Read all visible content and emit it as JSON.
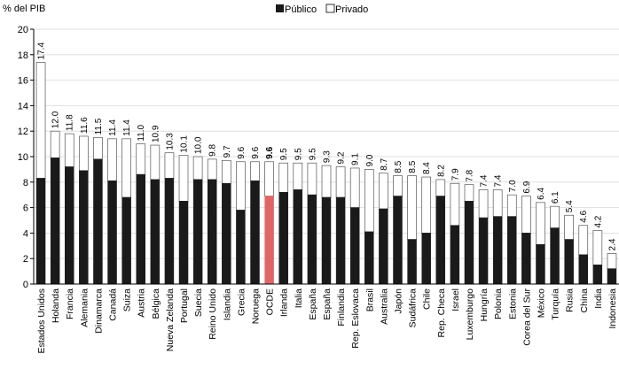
{
  "chart_data": {
    "type": "bar",
    "stacked": true,
    "ylabel": "% del PIB",
    "ylim": [
      0,
      20
    ],
    "yticks": [
      0,
      2,
      4,
      6,
      8,
      10,
      12,
      14,
      16,
      18,
      20
    ],
    "legend_placement": "top-center",
    "colors": {
      "public": "#1a1a1a",
      "private": "#ffffff",
      "highlight": "#e06666",
      "border": "#555555"
    },
    "highlight_category": "OCDE",
    "categories": [
      "Estados Unidos",
      "Holanda",
      "Francia",
      "Alemania",
      "Dinamarca",
      "Canadá",
      "Suiza",
      "Austria",
      "Bélgica",
      "Nueva Zelanda",
      "Portugal",
      "Suecia",
      "Reino Unido",
      "Islandia",
      "Grecia",
      "Noruega",
      "OCDE",
      "Irlanda",
      "Italia",
      "España",
      "España",
      "Finlandia",
      "Rep. Eslovaca",
      "Brasil",
      "Australia",
      "Japón",
      "Sudáfrica",
      "Chile",
      "Rep. Checa",
      "Israel",
      "Luxemburgo",
      "Hungría",
      "Polonia",
      "Estonia",
      "Corea del Sur",
      "México",
      "Turquía",
      "Rusia",
      "China",
      "India",
      "Indonesia"
    ],
    "totals": [
      "17.4",
      "12.0",
      "11.8",
      "11.6",
      "11.5",
      "11.4",
      "11.4",
      "11.0",
      "10.9",
      "10.3",
      "10.1",
      "10.0",
      "9.8",
      "9.7",
      "9.6",
      "9.6",
      "9.6",
      "9.5",
      "9.5",
      "9.5",
      "9.3",
      "9.2",
      "9.1",
      "9.0",
      "8.7",
      "8.5",
      "8.5",
      "8.4",
      "8.2",
      "7.9",
      "7.8",
      "7.4",
      "7.4",
      "7.0",
      "6.9",
      "6.4",
      "6.1",
      "5.4",
      "4.6",
      "4.2",
      "2.4"
    ],
    "series": [
      {
        "name": "Público",
        "values": [
          8.3,
          9.9,
          9.2,
          8.9,
          9.8,
          8.1,
          6.8,
          8.6,
          8.2,
          8.3,
          6.5,
          8.2,
          8.2,
          7.9,
          5.8,
          8.1,
          6.9,
          7.2,
          7.4,
          7.0,
          6.8,
          6.8,
          6.0,
          4.1,
          5.9,
          6.9,
          3.5,
          4.0,
          6.9,
          4.6,
          6.5,
          5.2,
          5.3,
          5.3,
          4.0,
          3.1,
          4.4,
          3.5,
          2.3,
          1.5,
          1.2
        ]
      },
      {
        "name": "Privado",
        "values": [
          9.1,
          2.1,
          2.6,
          2.7,
          1.7,
          3.3,
          4.6,
          2.4,
          2.7,
          2.0,
          3.6,
          1.8,
          1.6,
          1.8,
          3.8,
          1.5,
          2.7,
          2.3,
          2.1,
          2.5,
          2.5,
          2.4,
          3.1,
          4.9,
          2.8,
          1.6,
          5.0,
          4.4,
          1.3,
          3.3,
          1.3,
          2.2,
          2.1,
          1.7,
          2.9,
          3.3,
          1.7,
          1.9,
          2.3,
          2.7,
          1.2
        ]
      }
    ]
  }
}
